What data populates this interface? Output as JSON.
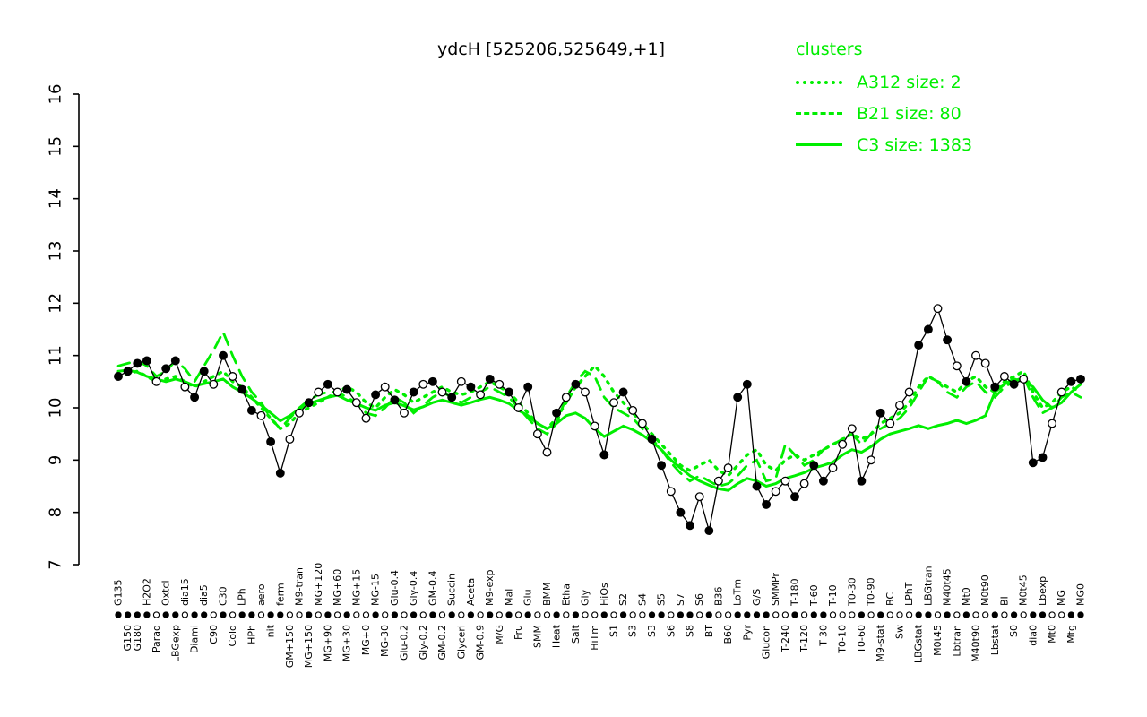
{
  "title": "ydcH [525206,525649,+1]",
  "legend": {
    "title": "clusters",
    "items": [
      {
        "label": "A312 size: 2",
        "style": "dotted"
      },
      {
        "label": "B21 size: 80",
        "style": "dashed"
      },
      {
        "label": "C3 size: 1383",
        "style": "solid"
      }
    ]
  },
  "colors": {
    "cluster": "#00ee00",
    "profile": "#000000",
    "open_fill": "#ffffff"
  },
  "chart_data": {
    "type": "line",
    "title": "ydcH [525206,525649,+1]",
    "ylim": [
      7,
      16
    ],
    "yticks": [
      7,
      8,
      9,
      10,
      11,
      12,
      13,
      14,
      15,
      16
    ],
    "grid": false,
    "legend_position": "top-right",
    "categories": [
      "G135",
      "G150",
      "G180",
      "H2O2",
      "Paraq",
      "Oxtcl",
      "LBGexp",
      "dia15",
      "Diami",
      "dia5",
      "C90",
      "C30",
      "Cold",
      "LPh",
      "HPh",
      "aero",
      "nit",
      "ferm",
      "GM+150",
      "M9-tran",
      "MG+150",
      "MG+120",
      "MG+90",
      "MG+60",
      "MG+30",
      "MG+15",
      "MG+0",
      "MG-15",
      "MG-30",
      "Glu-0.4",
      "Glu-0.2",
      "Gly-0.4",
      "Gly-0.2",
      "GM-0.4",
      "GM-0.2",
      "Succin",
      "Glyceri",
      "Aceta",
      "GM-0.9",
      "M9-exp",
      "M/G",
      "Mal",
      "Fru",
      "Glu",
      "SMM",
      "BMM",
      "Heat",
      "Etha",
      "Salt",
      "Gly",
      "HiTm",
      "HiOs",
      "S1",
      "S2",
      "S3",
      "S4",
      "S3",
      "S5",
      "S6",
      "S7",
      "S8",
      "S6",
      "BT",
      "B36",
      "B60",
      "LoTm",
      "Pyr",
      "G/S",
      "Glucon",
      "SMMPr",
      "T-240",
      "T-180",
      "T-120",
      "T-60",
      "T-30",
      "T-10",
      "T0-10",
      "T0-30",
      "T0-60",
      "T0-90",
      "M9-stat",
      "BC",
      "Sw",
      "LPhT",
      "LBGstat",
      "LBGtran",
      "M0t45",
      "M40t45",
      "Lbtran",
      "Mt0",
      "M40t90",
      "M0t90",
      "Lbstat",
      "BI",
      "S0",
      "M0t45",
      "dia0",
      "Lbexp",
      "Mt0",
      "MG",
      "Mtg",
      "MG0"
    ],
    "label_row": [
      "t",
      "b",
      "b",
      "t",
      "b",
      "t",
      "b",
      "t",
      "b",
      "t",
      "b",
      "t",
      "b",
      "t",
      "b",
      "t",
      "b",
      "t",
      "b",
      "t",
      "b",
      "t",
      "b",
      "t",
      "b",
      "t",
      "b",
      "t",
      "b",
      "t",
      "b",
      "t",
      "b",
      "t",
      "b",
      "t",
      "b",
      "t",
      "b",
      "t",
      "b",
      "t",
      "b",
      "t",
      "b",
      "t",
      "b",
      "t",
      "b",
      "t",
      "b",
      "t",
      "b",
      "t",
      "b",
      "t",
      "b",
      "t",
      "b",
      "t",
      "b",
      "t",
      "b",
      "t",
      "b",
      "t",
      "b",
      "t",
      "b",
      "t",
      "b",
      "t",
      "b",
      "t",
      "b",
      "t",
      "b",
      "t",
      "b",
      "t",
      "b",
      "t",
      "b",
      "t",
      "b",
      "t",
      "b",
      "t",
      "b",
      "t",
      "b",
      "t",
      "b",
      "t",
      "b",
      "t",
      "b",
      "t",
      "b",
      "t",
      "b",
      "t"
    ],
    "markers": [
      "f",
      "f",
      "f",
      "f",
      "o",
      "f",
      "f",
      "o",
      "f",
      "f",
      "o",
      "f",
      "o",
      "f",
      "f",
      "o",
      "f",
      "f",
      "o",
      "o",
      "f",
      "o",
      "f",
      "o",
      "f",
      "o",
      "o",
      "f",
      "o",
      "f",
      "o",
      "f",
      "o",
      "f",
      "o",
      "f",
      "o",
      "f",
      "o",
      "f",
      "o",
      "f",
      "o",
      "f",
      "o",
      "o",
      "f",
      "o",
      "f",
      "o",
      "o",
      "f",
      "o",
      "f",
      "o",
      "o",
      "f",
      "f",
      "o",
      "f",
      "f",
      "o",
      "f",
      "o",
      "o",
      "f",
      "f",
      "f",
      "f",
      "o",
      "o",
      "f",
      "o",
      "f",
      "f",
      "o",
      "o",
      "o",
      "f",
      "o",
      "f",
      "o",
      "o",
      "o",
      "f",
      "f",
      "o",
      "f",
      "o",
      "f",
      "o",
      "o",
      "f",
      "o",
      "f",
      "o",
      "f",
      "f",
      "o",
      "o",
      "f",
      "f"
    ],
    "series": [
      {
        "name": "ydcH",
        "color": "#000000",
        "dash": "none",
        "values": [
          10.6,
          10.7,
          10.85,
          10.9,
          10.5,
          10.75,
          10.9,
          10.4,
          10.2,
          10.7,
          10.45,
          11.0,
          10.6,
          10.35,
          9.95,
          9.85,
          9.35,
          8.75,
          9.4,
          9.9,
          10.1,
          10.3,
          10.45,
          10.3,
          10.35,
          10.1,
          9.8,
          10.25,
          10.4,
          10.15,
          9.9,
          10.3,
          10.45,
          10.5,
          10.3,
          10.2,
          10.5,
          10.4,
          10.25,
          10.55,
          10.45,
          10.3,
          10.0,
          10.4,
          9.5,
          9.15,
          9.9,
          10.2,
          10.45,
          10.3,
          9.65,
          9.1,
          10.1,
          10.3,
          9.95,
          9.7,
          9.4,
          8.9,
          8.4,
          8.0,
          7.75,
          8.3,
          7.65,
          8.6,
          8.85,
          10.2,
          10.45,
          8.5,
          8.15,
          8.4,
          8.6,
          8.3,
          8.55,
          8.9,
          8.6,
          8.85,
          9.3,
          9.6,
          8.6,
          9.0,
          9.9,
          9.7,
          10.05,
          10.3,
          11.2,
          11.5,
          11.9,
          11.3,
          10.8,
          10.5,
          11.0,
          10.85,
          10.4,
          10.6,
          10.45,
          10.55,
          8.95,
          9.05,
          9.7,
          10.3,
          10.5,
          10.55
        ]
      },
      {
        "name": "A312",
        "color": "#00ee00",
        "dash": "dotted",
        "values": [
          10.6,
          10.65,
          10.7,
          10.6,
          10.5,
          10.55,
          10.6,
          10.5,
          10.4,
          10.5,
          10.6,
          10.7,
          10.5,
          10.4,
          10.2,
          10.0,
          9.8,
          9.6,
          9.7,
          9.9,
          10.0,
          10.1,
          10.2,
          10.3,
          10.4,
          10.3,
          10.1,
          10.0,
          10.2,
          10.35,
          10.25,
          10.1,
          10.2,
          10.3,
          10.4,
          10.3,
          10.25,
          10.3,
          10.4,
          10.5,
          10.4,
          10.3,
          10.1,
          9.9,
          9.7,
          9.6,
          9.8,
          10.1,
          10.4,
          10.6,
          10.8,
          10.6,
          10.3,
          10.1,
          9.9,
          9.7,
          9.5,
          9.3,
          9.1,
          8.9,
          8.8,
          8.9,
          9.0,
          8.8,
          8.7,
          8.9,
          9.1,
          9.2,
          8.9,
          8.8,
          9.0,
          9.1,
          9.0,
          9.1,
          9.2,
          9.3,
          9.4,
          9.5,
          9.4,
          9.5,
          9.7,
          9.8,
          9.9,
          10.1,
          10.4,
          10.6,
          10.5,
          10.4,
          10.3,
          10.5,
          10.6,
          10.4,
          10.3,
          10.5,
          10.6,
          10.7,
          10.3,
          10.0,
          10.1,
          10.3,
          10.4,
          10.3
        ]
      },
      {
        "name": "B21",
        "color": "#00ee00",
        "dash": "dashed",
        "values": [
          10.8,
          10.85,
          10.9,
          10.8,
          10.6,
          10.7,
          10.9,
          10.75,
          10.5,
          10.8,
          11.1,
          11.45,
          11.0,
          10.6,
          10.3,
          10.1,
          9.8,
          9.6,
          9.8,
          10.0,
          10.15,
          10.25,
          10.3,
          10.3,
          10.2,
          10.1,
          9.9,
          9.85,
          10.0,
          10.2,
          10.1,
          9.9,
          10.05,
          10.2,
          10.3,
          10.2,
          10.1,
          10.2,
          10.3,
          10.4,
          10.3,
          10.2,
          10.0,
          9.8,
          9.6,
          9.5,
          9.7,
          10.2,
          10.5,
          10.7,
          10.6,
          10.2,
          10.0,
          9.9,
          9.8,
          9.6,
          9.4,
          9.2,
          8.95,
          8.75,
          8.6,
          8.7,
          8.6,
          8.5,
          8.55,
          8.7,
          8.9,
          9.0,
          8.6,
          8.65,
          9.3,
          9.1,
          8.9,
          9.0,
          9.2,
          9.3,
          9.4,
          9.5,
          9.3,
          9.5,
          9.6,
          9.7,
          9.8,
          10.0,
          10.3,
          10.6,
          10.5,
          10.3,
          10.2,
          10.4,
          10.5,
          10.3,
          10.2,
          10.4,
          10.5,
          10.6,
          10.2,
          9.9,
          10.0,
          10.2,
          10.3,
          10.2
        ]
      },
      {
        "name": "C3",
        "color": "#00ee00",
        "dash": "solid",
        "values": [
          10.7,
          10.72,
          10.68,
          10.6,
          10.55,
          10.5,
          10.55,
          10.5,
          10.42,
          10.46,
          10.5,
          10.55,
          10.4,
          10.3,
          10.18,
          10.05,
          9.9,
          9.75,
          9.85,
          9.98,
          10.08,
          10.14,
          10.2,
          10.24,
          10.15,
          10.08,
          10.0,
          9.95,
          10.05,
          10.1,
          10.04,
          9.96,
          10.02,
          10.1,
          10.15,
          10.1,
          10.05,
          10.1,
          10.16,
          10.2,
          10.15,
          10.08,
          9.95,
          9.85,
          9.7,
          9.6,
          9.7,
          9.85,
          9.9,
          9.8,
          9.6,
          9.45,
          9.55,
          9.65,
          9.58,
          9.48,
          9.35,
          9.2,
          9.0,
          8.85,
          8.7,
          8.6,
          8.52,
          8.45,
          8.42,
          8.55,
          8.65,
          8.6,
          8.5,
          8.55,
          8.65,
          8.7,
          8.76,
          8.85,
          8.9,
          8.96,
          9.1,
          9.2,
          9.15,
          9.26,
          9.4,
          9.5,
          9.55,
          9.6,
          9.66,
          9.6,
          9.66,
          9.7,
          9.76,
          9.7,
          9.76,
          9.85,
          10.3,
          10.45,
          10.55,
          10.5,
          10.4,
          10.15,
          10.0,
          10.1,
          10.3,
          10.45
        ]
      }
    ]
  }
}
